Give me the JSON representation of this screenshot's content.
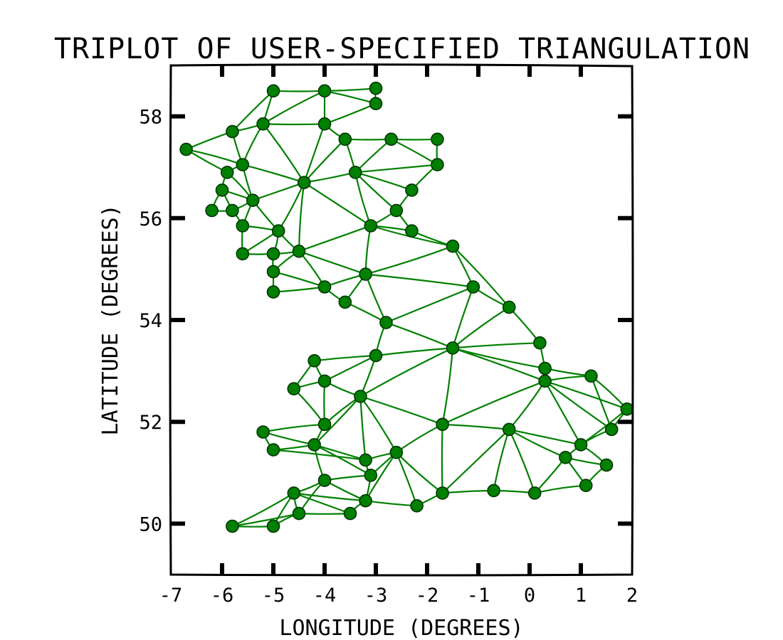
{
  "chart_data": {
    "type": "scatter",
    "style": "xkcd triplot",
    "title": "TRIPLOT OF USER-SPECIFIED TRIANGULATION",
    "xlabel": "LONGITUDE (DEGREES)",
    "ylabel": "LATITUDE (DEGREES)",
    "xlim": [
      -7,
      2
    ],
    "ylim": [
      49,
      59
    ],
    "xticks": [
      -7,
      -6,
      -5,
      -4,
      -3,
      -2,
      -1,
      0,
      1,
      2
    ],
    "xtick_labels": [
      "-7",
      "-6",
      "-5",
      "-4",
      "-3",
      "-2",
      "-1",
      "0",
      "1",
      "2"
    ],
    "yticks": [
      50,
      52,
      54,
      56,
      58
    ],
    "ytick_labels": [
      "50",
      "52",
      "54",
      "56",
      "58"
    ],
    "grid": false,
    "edge_color": "#008000",
    "marker_color": "#008000",
    "points": [
      [
        -5,
        58.5
      ],
      [
        -4,
        58.5
      ],
      [
        -3,
        58.55
      ],
      [
        -3,
        58.25
      ],
      [
        -5.2,
        57.85
      ],
      [
        -4,
        57.85
      ],
      [
        -5.8,
        57.7
      ],
      [
        -6.7,
        57.35
      ],
      [
        -3.6,
        57.55
      ],
      [
        -2.7,
        57.55
      ],
      [
        -1.8,
        57.55
      ],
      [
        -1.8,
        57.05
      ],
      [
        -5.6,
        57.05
      ],
      [
        -5.9,
        56.9
      ],
      [
        -4.4,
        56.7
      ],
      [
        -3.4,
        56.9
      ],
      [
        -6,
        56.55
      ],
      [
        -2.3,
        56.55
      ],
      [
        -5.4,
        56.35
      ],
      [
        -6.2,
        56.15
      ],
      [
        -5.8,
        56.15
      ],
      [
        -2.6,
        56.15
      ],
      [
        -5.6,
        55.85
      ],
      [
        -3.1,
        55.85
      ],
      [
        -4.9,
        55.75
      ],
      [
        -2.3,
        55.75
      ],
      [
        -1.5,
        55.45
      ],
      [
        -4.5,
        55.35
      ],
      [
        -5.6,
        55.3
      ],
      [
        -5,
        55.3
      ],
      [
        -5,
        54.95
      ],
      [
        -3.2,
        54.9
      ],
      [
        -4,
        54.65
      ],
      [
        -1.1,
        54.65
      ],
      [
        -5,
        54.55
      ],
      [
        -3.6,
        54.35
      ],
      [
        -0.4,
        54.25
      ],
      [
        -2.8,
        53.95
      ],
      [
        0.2,
        53.55
      ],
      [
        -1.5,
        53.45
      ],
      [
        -3,
        53.3
      ],
      [
        -4.2,
        53.2
      ],
      [
        0.3,
        53.05
      ],
      [
        1.2,
        52.9
      ],
      [
        -4,
        52.8
      ],
      [
        -4.6,
        52.65
      ],
      [
        0.3,
        52.8
      ],
      [
        -3.3,
        52.5
      ],
      [
        1.9,
        52.25
      ],
      [
        -1.7,
        51.95
      ],
      [
        -4,
        51.95
      ],
      [
        -0.4,
        51.85
      ],
      [
        1.6,
        51.85
      ],
      [
        -5.2,
        51.8
      ],
      [
        -4.2,
        51.55
      ],
      [
        1,
        51.55
      ],
      [
        -5,
        51.45
      ],
      [
        -2.6,
        51.4
      ],
      [
        -3.2,
        51.25
      ],
      [
        0.7,
        51.3
      ],
      [
        1.5,
        51.15
      ],
      [
        -3.1,
        50.95
      ],
      [
        -4,
        50.85
      ],
      [
        1.1,
        50.75
      ],
      [
        -0.7,
        50.65
      ],
      [
        -1.7,
        50.6
      ],
      [
        0.1,
        50.6
      ],
      [
        -4.6,
        50.6
      ],
      [
        -3.2,
        50.45
      ],
      [
        -2.2,
        50.35
      ],
      [
        -4.5,
        50.2
      ],
      [
        -3.5,
        50.2
      ],
      [
        -5.8,
        49.95
      ],
      [
        -5,
        49.95
      ]
    ],
    "triangles": [
      [
        0,
        1,
        4
      ],
      [
        1,
        4,
        5
      ],
      [
        1,
        2,
        3
      ],
      [
        1,
        3,
        5
      ],
      [
        0,
        4,
        6
      ],
      [
        4,
        6,
        12
      ],
      [
        6,
        7,
        12
      ],
      [
        7,
        12,
        13
      ],
      [
        4,
        5,
        14
      ],
      [
        4,
        12,
        14
      ],
      [
        5,
        8,
        14
      ],
      [
        8,
        14,
        15
      ],
      [
        8,
        9,
        15
      ],
      [
        9,
        10,
        11
      ],
      [
        9,
        11,
        15
      ],
      [
        11,
        15,
        17
      ],
      [
        15,
        17,
        21
      ],
      [
        15,
        21,
        23
      ],
      [
        14,
        15,
        23
      ],
      [
        12,
        13,
        18
      ],
      [
        12,
        14,
        18
      ],
      [
        13,
        16,
        18
      ],
      [
        16,
        19,
        20
      ],
      [
        16,
        18,
        20
      ],
      [
        18,
        20,
        22
      ],
      [
        18,
        22,
        24
      ],
      [
        14,
        18,
        24
      ],
      [
        14,
        24,
        27
      ],
      [
        14,
        23,
        27
      ],
      [
        22,
        24,
        28
      ],
      [
        24,
        28,
        29
      ],
      [
        24,
        27,
        29
      ],
      [
        27,
        29,
        30
      ],
      [
        21,
        23,
        25
      ],
      [
        23,
        25,
        26
      ],
      [
        23,
        26,
        31
      ],
      [
        23,
        27,
        31
      ],
      [
        27,
        30,
        32
      ],
      [
        27,
        31,
        32
      ],
      [
        30,
        32,
        34
      ],
      [
        26,
        31,
        33
      ],
      [
        26,
        33,
        36
      ],
      [
        31,
        32,
        35
      ],
      [
        31,
        35,
        37
      ],
      [
        31,
        33,
        37
      ],
      [
        33,
        36,
        39
      ],
      [
        33,
        37,
        39
      ],
      [
        36,
        38,
        39
      ],
      [
        38,
        39,
        42
      ],
      [
        37,
        39,
        40
      ],
      [
        39,
        42,
        46
      ],
      [
        40,
        41,
        44
      ],
      [
        41,
        44,
        45
      ],
      [
        40,
        44,
        47
      ],
      [
        40,
        39,
        47
      ],
      [
        39,
        47,
        49
      ],
      [
        39,
        46,
        49
      ],
      [
        46,
        49,
        51
      ],
      [
        42,
        43,
        46
      ],
      [
        43,
        46,
        48
      ],
      [
        43,
        48,
        52
      ],
      [
        46,
        51,
        55
      ],
      [
        46,
        52,
        55
      ],
      [
        48,
        52,
        55
      ],
      [
        44,
        45,
        50
      ],
      [
        44,
        47,
        50
      ],
      [
        47,
        50,
        54
      ],
      [
        47,
        54,
        58
      ],
      [
        47,
        57,
        58
      ],
      [
        47,
        49,
        57
      ],
      [
        50,
        53,
        54
      ],
      [
        53,
        54,
        56
      ],
      [
        54,
        56,
        58
      ],
      [
        49,
        57,
        65
      ],
      [
        49,
        51,
        65
      ],
      [
        51,
        64,
        65
      ],
      [
        51,
        55,
        59
      ],
      [
        51,
        59,
        66
      ],
      [
        51,
        64,
        66
      ],
      [
        55,
        59,
        60
      ],
      [
        59,
        60,
        63
      ],
      [
        59,
        63,
        66
      ],
      [
        57,
        58,
        61
      ],
      [
        57,
        61,
        68
      ],
      [
        57,
        68,
        69
      ],
      [
        57,
        65,
        69
      ],
      [
        54,
        58,
        61
      ],
      [
        54,
        61,
        62
      ],
      [
        61,
        62,
        68
      ],
      [
        62,
        67,
        68
      ],
      [
        67,
        68,
        71
      ],
      [
        67,
        70,
        71
      ],
      [
        62,
        67,
        70
      ],
      [
        67,
        70,
        72
      ],
      [
        67,
        72,
        73
      ],
      [
        70,
        72,
        73
      ]
    ]
  }
}
